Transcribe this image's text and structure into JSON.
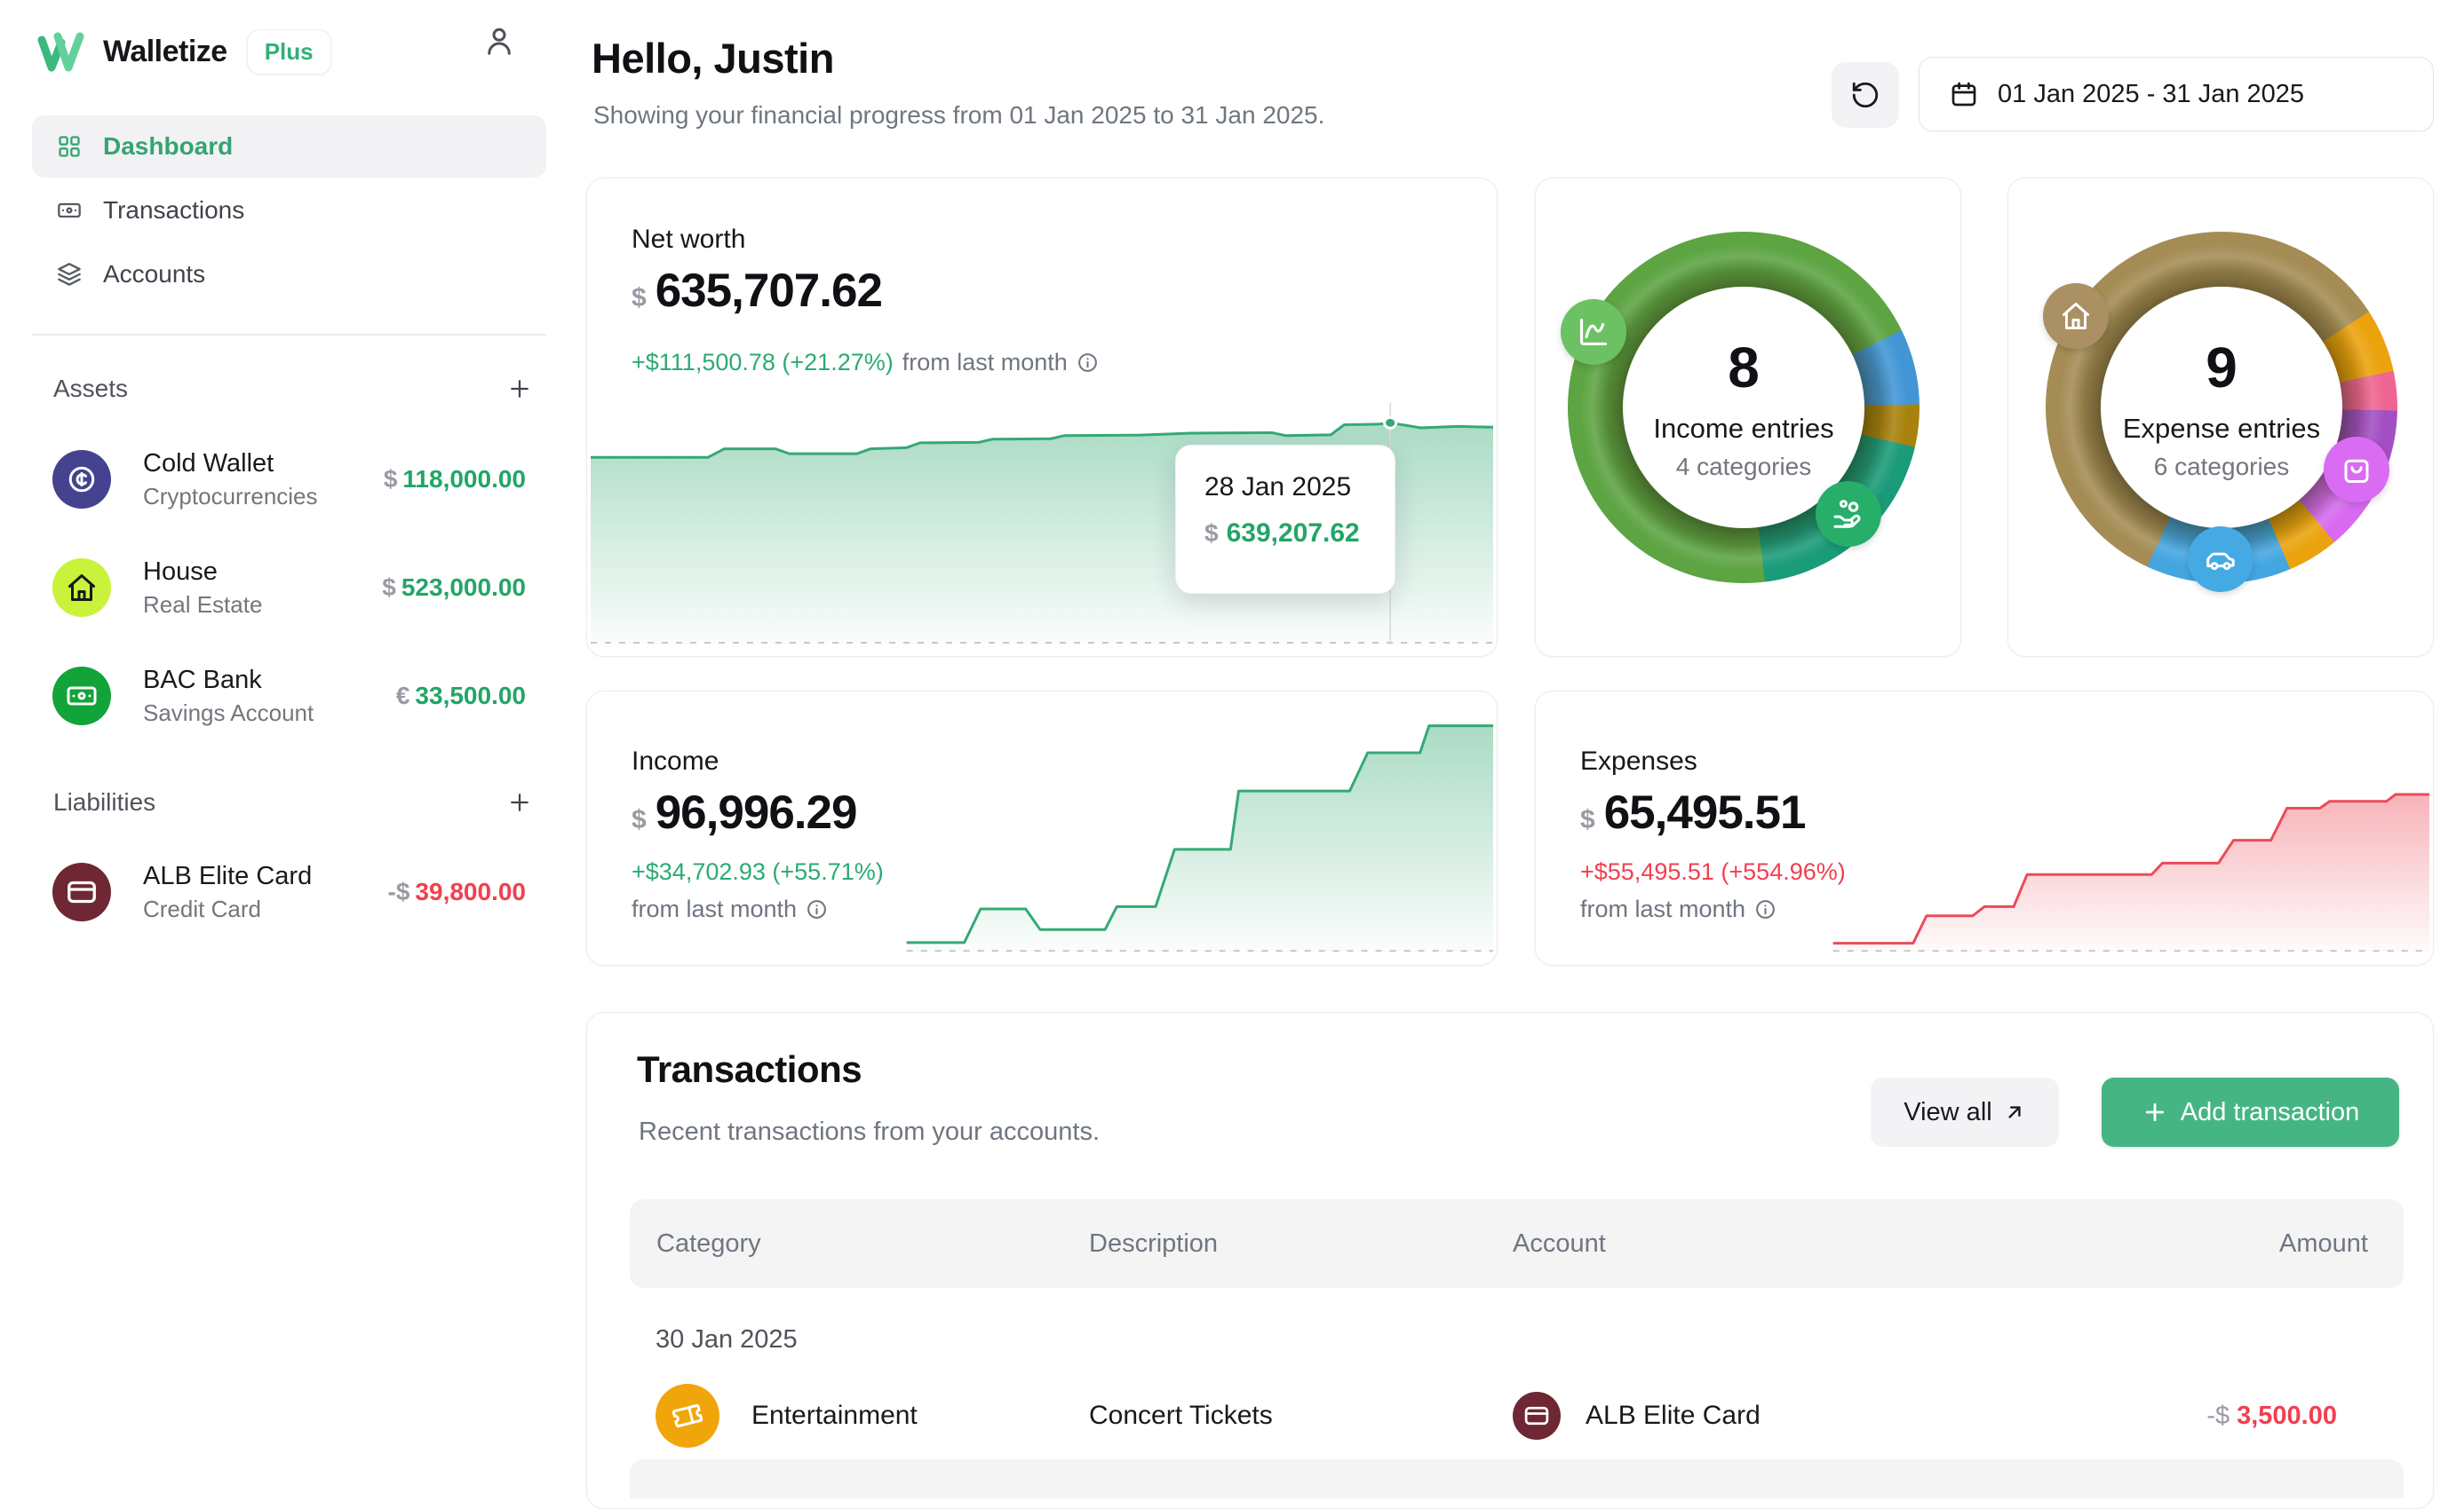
{
  "brand": {
    "name": "Walletize",
    "badge": "Plus"
  },
  "colors": {
    "accent_green": "#23a567",
    "negative_red": "#f23f4f",
    "brand_green_dark": "#3cb97e",
    "brand_green_light": "#62d19b",
    "plus_badge_green": "#2fb077",
    "add_button_green": "#45b683",
    "net_worth_line": "#34a974",
    "expenses_line": "#ec4b59"
  },
  "icons": {
    "brand_logo": "walletize-w",
    "user": "person-outline",
    "nav_dashboard": "grid",
    "nav_transactions": "banknote",
    "nav_accounts": "layers",
    "section_add": "plus",
    "refresh": "rotate-ccw",
    "date_range": "calendar",
    "info": "info-circle",
    "view_all": "arrow-up-right",
    "income_badge_top": "chart-line",
    "income_badge_bottom": "hand-coins",
    "expense_badge_1": "house",
    "expense_badge_2": "shopping-bag",
    "expense_badge_3": "car",
    "asset_cold_wallet": "coin-cent",
    "asset_house": "house",
    "asset_bac_bank": "banknote",
    "liability_alb": "credit-card",
    "category_entertainment": "ticket"
  },
  "sidebar": {
    "nav": [
      {
        "label": "Dashboard",
        "active": true
      },
      {
        "label": "Transactions",
        "active": false
      },
      {
        "label": "Accounts",
        "active": false
      }
    ],
    "assets": {
      "title": "Assets",
      "items": [
        {
          "name": "Cold Wallet",
          "type": "Cryptocurrencies",
          "currency": "$",
          "value": "118,000.00",
          "icon_color": "#45428f"
        },
        {
          "name": "House",
          "type": "Real Estate",
          "currency": "$",
          "value": "523,000.00",
          "icon_color": "#c9f23a"
        },
        {
          "name": "BAC Bank",
          "type": "Savings Account",
          "currency": "€",
          "value": "33,500.00",
          "icon_color": "#12a339"
        }
      ]
    },
    "liabilities": {
      "title": "Liabilities",
      "items": [
        {
          "name": "ALB Elite Card",
          "type": "Credit Card",
          "currency": "-$",
          "value": "39,800.00",
          "icon_color": "#6e2733"
        }
      ]
    }
  },
  "header": {
    "greeting": "Hello, Justin",
    "subtitle": "Showing your financial progress from 01 Jan 2025 to 31 Jan 2025.",
    "date_range": "01 Jan 2025 - 31 Jan 2025"
  },
  "net_worth": {
    "title": "Net worth",
    "currency": "$",
    "value": "635,707.62",
    "delta": "+$111,500.78 (+21.27%)",
    "delta_suffix": "from last month",
    "tooltip": {
      "date": "28 Jan 2025",
      "currency": "$",
      "value": "639,207.62"
    }
  },
  "income_entries": {
    "count": "8",
    "label": "Income entries",
    "sublabel": "4 categories"
  },
  "expense_entries": {
    "count": "9",
    "label": "Expense entries",
    "sublabel": "6 categories"
  },
  "income": {
    "title": "Income",
    "currency": "$",
    "value": "96,996.29",
    "delta": "+$34,702.93 (+55.71%)",
    "delta_suffix": "from last month"
  },
  "expenses": {
    "title": "Expenses",
    "currency": "$",
    "value": "65,495.51",
    "delta": "+$55,495.51 (+554.96%)",
    "delta_suffix": "from last month"
  },
  "transactions": {
    "title": "Transactions",
    "subtitle": "Recent transactions from your accounts.",
    "view_all_label": "View all",
    "add_label": "Add transaction",
    "columns": [
      "Category",
      "Description",
      "Account",
      "Amount"
    ],
    "groups": [
      {
        "date": "30 Jan 2025",
        "rows": [
          {
            "category": "Entertainment",
            "category_color": "#f0a60b",
            "description": "Concert Tickets",
            "account": "ALB Elite Card",
            "account_color": "#6e2733",
            "amount_currency": "-$",
            "amount": "3,500.00"
          }
        ]
      }
    ]
  },
  "chart_data": [
    {
      "id": "net_worth_chart",
      "type": "area",
      "title": "Net worth",
      "x_range": [
        "01 Jan 2025",
        "31 Jan 2025"
      ],
      "start_value": 524206.84,
      "end_value": 635707.62,
      "highlight": {
        "date": "28 Jan 2025",
        "value": 639207.62
      },
      "color": "#34a974",
      "baseline_from": 0,
      "crosshair_x": 0.886,
      "dot": [
        0.886,
        0.082
      ],
      "points": [
        [
          0,
          0.225
        ],
        [
          0.13,
          0.225
        ],
        [
          0.148,
          0.19
        ],
        [
          0.205,
          0.19
        ],
        [
          0.22,
          0.21
        ],
        [
          0.295,
          0.21
        ],
        [
          0.31,
          0.19
        ],
        [
          0.35,
          0.185
        ],
        [
          0.365,
          0.165
        ],
        [
          0.43,
          0.163
        ],
        [
          0.445,
          0.15
        ],
        [
          0.51,
          0.148
        ],
        [
          0.525,
          0.135
        ],
        [
          0.61,
          0.133
        ],
        [
          0.665,
          0.125
        ],
        [
          0.755,
          0.123
        ],
        [
          0.77,
          0.135
        ],
        [
          0.82,
          0.132
        ],
        [
          0.835,
          0.09
        ],
        [
          0.872,
          0.088
        ],
        [
          0.886,
          0.082
        ],
        [
          0.92,
          0.103
        ],
        [
          0.96,
          0.097
        ],
        [
          1,
          0.1
        ]
      ]
    },
    {
      "id": "income_entries_donut",
      "type": "donut",
      "entries": 8,
      "categories": 4,
      "segments": [
        {
          "color": "#5da443",
          "from": 0,
          "to": 64
        },
        {
          "color": "#4296d6",
          "from": 64,
          "to": 89
        },
        {
          "color": "#a9820d",
          "from": 89,
          "to": 103
        },
        {
          "color": "#1a9b79",
          "from": 103,
          "to": 173
        },
        {
          "color": "#5da443",
          "from": 173,
          "to": 360
        }
      ]
    },
    {
      "id": "expense_entries_donut",
      "type": "donut",
      "entries": 9,
      "categories": 6,
      "segments": [
        {
          "color": "#a58c55",
          "from": 0,
          "to": 57
        },
        {
          "color": "#eba30d",
          "from": 57,
          "to": 78
        },
        {
          "color": "#ef6491",
          "from": 78,
          "to": 91
        },
        {
          "color": "#a34ec4",
          "from": 91,
          "to": 113
        },
        {
          "color": "#d76af0",
          "from": 113,
          "to": 140
        },
        {
          "color": "#eba30d",
          "from": 140,
          "to": 157
        },
        {
          "color": "#44a6e0",
          "from": 157,
          "to": 205
        },
        {
          "color": "#a58c55",
          "from": 205,
          "to": 360
        }
      ]
    },
    {
      "id": "income_chart",
      "type": "area",
      "title": "Income",
      "start_value": 62293.36,
      "end_value": 96996.29,
      "color": "#34a974",
      "baseline_from": 0.35,
      "points": [
        [
          0.35,
          0.957
        ],
        [
          0.414,
          0.957
        ],
        [
          0.432,
          0.81
        ],
        [
          0.482,
          0.81
        ],
        [
          0.498,
          0.9
        ],
        [
          0.57,
          0.9
        ],
        [
          0.583,
          0.8
        ],
        [
          0.626,
          0.8
        ],
        [
          0.647,
          0.55
        ],
        [
          0.709,
          0.55
        ],
        [
          0.718,
          0.295
        ],
        [
          0.841,
          0.295
        ],
        [
          0.861,
          0.128
        ],
        [
          0.919,
          0.128
        ],
        [
          0.929,
          0.01
        ],
        [
          1,
          0.01
        ]
      ]
    },
    {
      "id": "expenses_chart",
      "type": "area",
      "title": "Expenses",
      "start_value": 10000.0,
      "end_value": 65495.51,
      "color": "#ec4b59",
      "baseline_from": 0.33,
      "points": [
        [
          0.33,
          0.96
        ],
        [
          0.42,
          0.96
        ],
        [
          0.435,
          0.84
        ],
        [
          0.487,
          0.84
        ],
        [
          0.5,
          0.8
        ],
        [
          0.533,
          0.8
        ],
        [
          0.548,
          0.66
        ],
        [
          0.688,
          0.66
        ],
        [
          0.7,
          0.61
        ],
        [
          0.763,
          0.61
        ],
        [
          0.78,
          0.51
        ],
        [
          0.822,
          0.51
        ],
        [
          0.84,
          0.37
        ],
        [
          0.877,
          0.37
        ],
        [
          0.888,
          0.34
        ],
        [
          0.952,
          0.34
        ],
        [
          0.962,
          0.31
        ],
        [
          1,
          0.31
        ]
      ]
    }
  ]
}
